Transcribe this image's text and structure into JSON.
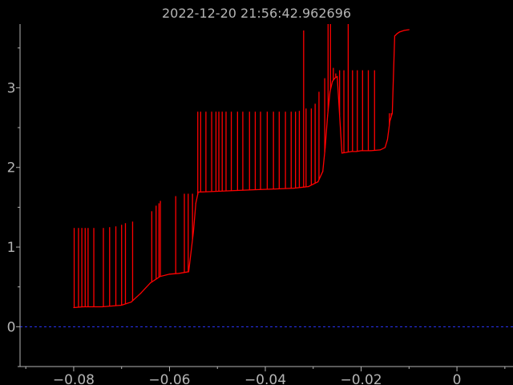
{
  "chart_data": {
    "type": "line",
    "title": "2022-12-20 21:56:42.962696",
    "xlabel": "",
    "ylabel": "",
    "xlim": [
      -0.0912,
      0.0117
    ],
    "ylim": [
      -0.5,
      3.8
    ],
    "xticks": [
      -0.08,
      -0.06,
      -0.04,
      -0.02,
      0
    ],
    "xtick_labels": [
      "−0.08",
      "−0.06",
      "−0.04",
      "−0.02",
      "0"
    ],
    "yticks": [
      0,
      1,
      2,
      3
    ],
    "ytick_labels": [
      "0",
      "1",
      "2",
      "3"
    ],
    "grid": false,
    "colors": {
      "background": "#000000",
      "axis": "#b4b4b4",
      "series": "#ff0000",
      "reference": "#2b35ff"
    },
    "reference_line": {
      "y": 0,
      "style": "dashed"
    },
    "series": [
      {
        "x": [
          -0.08,
          -0.078,
          -0.076,
          -0.074,
          -0.072,
          -0.07,
          -0.068,
          -0.066,
          -0.064,
          -0.062,
          -0.06,
          -0.058,
          -0.056,
          -0.055,
          -0.0545,
          -0.054,
          -0.05,
          -0.046,
          -0.042,
          -0.038,
          -0.034,
          -0.031,
          -0.029,
          -0.028,
          -0.0275,
          -0.027,
          -0.0265,
          -0.026,
          -0.0255,
          -0.025,
          -0.024,
          -0.023,
          -0.022,
          -0.021,
          -0.02,
          -0.018,
          -0.016,
          -0.015,
          -0.0145,
          -0.014,
          -0.0135,
          -0.013,
          -0.0125,
          -0.012,
          -0.011,
          -0.01
        ],
        "y": [
          0.24,
          0.25,
          0.25,
          0.25,
          0.26,
          0.27,
          0.31,
          0.42,
          0.55,
          0.63,
          0.66,
          0.67,
          0.69,
          1.2,
          1.55,
          1.69,
          1.7,
          1.71,
          1.72,
          1.73,
          1.74,
          1.76,
          1.82,
          1.95,
          2.25,
          2.65,
          2.95,
          3.08,
          3.12,
          3.14,
          2.18,
          2.19,
          2.2,
          2.2,
          2.21,
          2.21,
          2.22,
          2.25,
          2.35,
          2.58,
          2.68,
          3.65,
          3.68,
          3.7,
          3.72,
          3.73
        ],
        "spikes": [
          {
            "x": -0.0799,
            "y": 1.24
          },
          {
            "x": -0.079,
            "y": 1.24
          },
          {
            "x": -0.0783,
            "y": 1.24
          },
          {
            "x": -0.0776,
            "y": 1.24
          },
          {
            "x": -0.077,
            "y": 1.24
          },
          {
            "x": -0.0758,
            "y": 1.24
          },
          {
            "x": -0.0738,
            "y": 1.24
          },
          {
            "x": -0.0725,
            "y": 1.25
          },
          {
            "x": -0.0712,
            "y": 1.26
          },
          {
            "x": -0.07,
            "y": 1.28
          },
          {
            "x": -0.0692,
            "y": 1.3
          },
          {
            "x": -0.0677,
            "y": 1.32
          },
          {
            "x": -0.0637,
            "y": 1.45
          },
          {
            "x": -0.0628,
            "y": 1.52
          },
          {
            "x": -0.0622,
            "y": 1.55
          },
          {
            "x": -0.0619,
            "y": 1.58
          },
          {
            "x": -0.0587,
            "y": 1.64
          },
          {
            "x": -0.0569,
            "y": 1.67
          },
          {
            "x": -0.0561,
            "y": 1.67
          },
          {
            "x": -0.0552,
            "y": 1.67
          },
          {
            "x": -0.0541,
            "y": 2.7
          },
          {
            "x": -0.0535,
            "y": 2.7
          },
          {
            "x": -0.0524,
            "y": 2.7
          },
          {
            "x": -0.0512,
            "y": 2.7
          },
          {
            "x": -0.0503,
            "y": 2.7
          },
          {
            "x": -0.0497,
            "y": 2.7
          },
          {
            "x": -0.049,
            "y": 2.7
          },
          {
            "x": -0.0482,
            "y": 2.7
          },
          {
            "x": -0.0471,
            "y": 2.7
          },
          {
            "x": -0.0458,
            "y": 2.7
          },
          {
            "x": -0.0447,
            "y": 2.7
          },
          {
            "x": -0.0433,
            "y": 2.7
          },
          {
            "x": -0.0421,
            "y": 2.7
          },
          {
            "x": -0.041,
            "y": 2.7
          },
          {
            "x": -0.0396,
            "y": 2.7
          },
          {
            "x": -0.0383,
            "y": 2.7
          },
          {
            "x": -0.0371,
            "y": 2.7
          },
          {
            "x": -0.0358,
            "y": 2.7
          },
          {
            "x": -0.0346,
            "y": 2.7
          },
          {
            "x": -0.0337,
            "y": 2.7
          },
          {
            "x": -0.0329,
            "y": 2.71
          },
          {
            "x": -0.032,
            "y": 3.72
          },
          {
            "x": -0.0315,
            "y": 2.74
          },
          {
            "x": -0.0304,
            "y": 2.74
          },
          {
            "x": -0.0296,
            "y": 2.8
          },
          {
            "x": -0.0288,
            "y": 2.95
          },
          {
            "x": -0.0276,
            "y": 3.12
          },
          {
            "x": -0.0269,
            "y": 3.8
          },
          {
            "x": -0.0264,
            "y": 3.8
          },
          {
            "x": -0.0258,
            "y": 3.25
          },
          {
            "x": -0.0253,
            "y": 3.18
          },
          {
            "x": -0.0245,
            "y": 3.22
          },
          {
            "x": -0.0236,
            "y": 3.22
          },
          {
            "x": -0.0227,
            "y": 3.8
          },
          {
            "x": -0.0218,
            "y": 3.22
          },
          {
            "x": -0.0208,
            "y": 3.22
          },
          {
            "x": -0.0197,
            "y": 3.22
          },
          {
            "x": -0.0185,
            "y": 3.22
          },
          {
            "x": -0.0172,
            "y": 3.22
          },
          {
            "x": -0.0141,
            "y": 2.68
          },
          {
            "x": -0.0137,
            "y": 2.68
          }
        ]
      }
    ]
  }
}
